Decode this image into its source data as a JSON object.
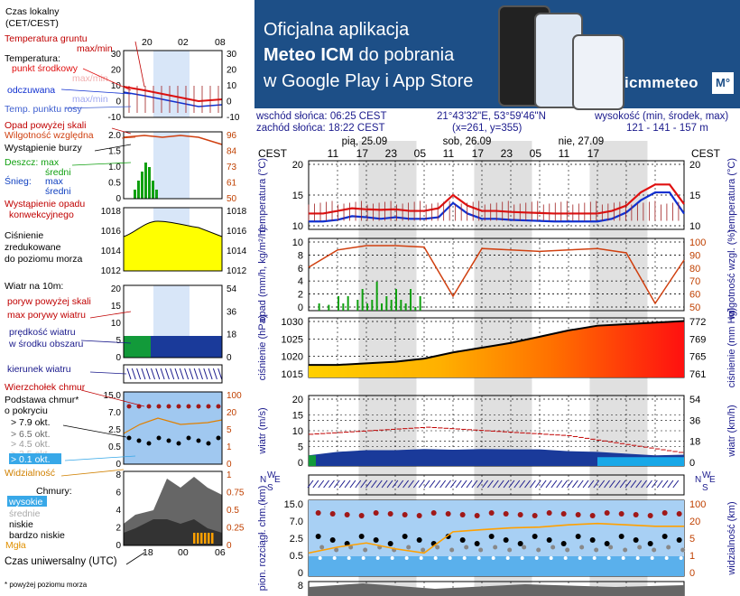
{
  "banner": {
    "line1": "Oficjalna aplikacja",
    "line2_bold": "Meteo ICM",
    "line2_rest": " do pobrania",
    "line3": "w Google Play i App Store",
    "brand": "icmmeteo",
    "logo": "M°",
    "colors": {
      "background": "#1d4f87",
      "text": "#ffffff"
    }
  },
  "info": {
    "sunrise": "wschód słońca: 06:25 CEST",
    "sunset": "zachód słońca: 18:22 CEST",
    "coords": "21°43'32\"E, 53°59'46\"N",
    "grid": "(x=261, y=355)",
    "altitude_label": "wysokość (min, środek, max)",
    "altitude_values": "121 - 141 - 157 m"
  },
  "legend": {
    "time_local": "Czas lokalny",
    "time_local2": "(CET/CEST)",
    "time_ticks": [
      "20",
      "02",
      "08"
    ],
    "ground_temp": "Temperatura gruntu",
    "ground_temp2": "max/min",
    "temperature": "Temperatura:",
    "mid_point": "punkt środkowy",
    "faded_maxmin": "max/min",
    "perceived": "odczuwana",
    "dew_point": "Temp. punktu rosy",
    "precip_over": "Opad powyżej skali",
    "humidity": "Wilgotność względna",
    "storm": "Wystąpienie burzy",
    "rain": "Deszcz: max",
    "rain_mid": "średni",
    "snow": "Śnieg:",
    "snow_max": "max",
    "snow_mid": "średni",
    "conv": "Wystąpienie opadu",
    "conv2": "konwekcyjnego",
    "pressure": "Ciśnienie",
    "pressure2": "zredukowane",
    "pressure3": "do poziomu morza",
    "wind_10m": "Wiatr na 10m:",
    "gust_over": "poryw powyżej skali",
    "gust_max": "max porywy wiatru",
    "wind_mean": "prędkość wiatru",
    "wind_mean2": "w środku obszaru",
    "wind_dir": "kierunek wiatru",
    "cloud_top": "Wierzchołek chmur",
    "cloud_base": "Podstawa chmur*",
    "cloud_base2": "o pokryciu",
    "okt": [
      "> 7.9 okt.",
      "> 6.5 okt.",
      "> 4.5 okt.",
      "> 2.5 okt.",
      "> 0.1 okt."
    ],
    "visibility": "Widzialność",
    "clouds": "Chmury:",
    "cl_high": "wysokie",
    "cl_mid": "średnie",
    "cl_low": "niskie",
    "cl_vlow": "bardzo niskie",
    "fog": "Mgła",
    "utc": "Czas uniwersalny (UTC)",
    "utc_ticks": [
      "18",
      "00",
      "06"
    ],
    "footnote": "* powyżej poziomu morza",
    "ticks_temp_l": [
      "30",
      "20",
      "10",
      "0",
      "-10"
    ],
    "ticks_temp_r": [
      "30",
      "20",
      "10",
      "0",
      "-10"
    ],
    "ticks_pr_l": [
      "2.0",
      "1.5",
      "1.0",
      "0.5",
      "0"
    ],
    "ticks_pr_r": [
      "96",
      "84",
      "73",
      "61",
      "50"
    ],
    "ticks_p_l": [
      "1018",
      "1016",
      "1014",
      "1012"
    ],
    "ticks_p_r": [
      "1018",
      "1016",
      "1014",
      "1012"
    ],
    "ticks_w_l": [
      "20",
      "15",
      "10",
      "5",
      "0"
    ],
    "ticks_w_r": [
      "54",
      "36",
      "18",
      "0"
    ],
    "ticks_c_l": [
      "15.0",
      "7.0",
      "2.5",
      "0.5",
      "0"
    ],
    "ticks_c_r": [
      "100",
      "20",
      "5",
      "1",
      "0"
    ],
    "ticks_cl_l": [
      "8",
      "6",
      "4",
      "2",
      "0"
    ],
    "ticks_cl_r": [
      "1",
      "0.75",
      "0.5",
      "0.25",
      "0"
    ]
  },
  "main": {
    "tz": "CEST",
    "days": [
      "pią, 25.09",
      "sob, 26.09",
      "nie, 27.09"
    ],
    "hours": [
      "11",
      "17",
      "23",
      "05",
      "11",
      "17",
      "23",
      "05",
      "11",
      "17"
    ],
    "labels": {
      "temp_l": "temperatura (°C)",
      "temp_r": "temperatura (°C)",
      "precip_l": "opad (mm/h, kg/m²/h)",
      "precip_r": "wilgotność wzgl. (%)",
      "pres_l": "ciśnienie (hPa)",
      "pres_r": "ciśnienie (mm Hg)",
      "wind_l": "wiatr (m/s)",
      "wind_r": "wiatr (km/h)",
      "vis_l": "pion. rozciągł. chm.(km)",
      "vis_r": "widzialność (km)"
    },
    "ticks": {
      "temp": [
        "20",
        "15",
        "10"
      ],
      "precip_l": [
        "10",
        "8",
        "6",
        "4",
        "2",
        "0"
      ],
      "precip_r": [
        "100",
        "90",
        "80",
        "70",
        "60",
        "50"
      ],
      "pres_l": [
        "1030",
        "1025",
        "1020",
        "1015"
      ],
      "pres_r": [
        "772",
        "769",
        "765",
        "761"
      ],
      "wind_l": [
        "20",
        "15",
        "10",
        "5",
        "0"
      ],
      "wind_r": [
        "54",
        "36",
        "18",
        "0"
      ],
      "vis_l": [
        "15.0",
        "7.0",
        "2.5",
        "0.5",
        "0"
      ],
      "vis_r": [
        "100",
        "20",
        "5",
        "1",
        "0"
      ],
      "bottom": "8"
    },
    "compass": [
      "N",
      "W",
      "E",
      "S"
    ]
  },
  "colors": {
    "axis_text": "#1a1a8c",
    "temp_red": "#e01010",
    "perceived_blue": "#1030d0",
    "humidity": "#d04010",
    "rain_green": "#10a010",
    "snow_blue": "#1040c0",
    "pressure_yellow": "#ffff00",
    "night_shade": "#e0e0e0",
    "fog": "#ffa000"
  },
  "chart_data": [
    {
      "type": "line",
      "title": "temperatura (°C)",
      "x_unit": "hours from 25.09 08:00 CEST",
      "ylim": [
        8,
        21
      ],
      "series": [
        {
          "name": "punkt środkowy",
          "x": [
            0,
            3,
            6,
            9,
            12,
            15,
            18,
            21,
            24,
            27,
            30,
            33,
            36,
            39,
            42,
            45,
            48,
            51,
            54,
            57,
            60,
            63,
            66,
            69,
            72,
            75,
            78
          ],
          "values": [
            11,
            11,
            11.5,
            12,
            11.8,
            11.7,
            11.8,
            11.5,
            11.5,
            12,
            14.5,
            12.5,
            11.5,
            11.5,
            11.3,
            11.2,
            11.1,
            11,
            11,
            11,
            11,
            11.5,
            12.5,
            15,
            16.5,
            16.5,
            12.8
          ]
        },
        {
          "name": "odczuwana",
          "x": [
            0,
            3,
            6,
            9,
            12,
            15,
            18,
            21,
            24,
            27,
            30,
            33,
            36,
            39,
            42,
            45,
            48,
            51,
            54,
            57,
            60,
            63,
            66,
            69,
            72,
            75,
            78
          ],
          "values": [
            9.5,
            9.5,
            9.8,
            10.5,
            10.3,
            10,
            10.3,
            10,
            10,
            10.3,
            13,
            11,
            10,
            10,
            9.8,
            9.7,
            9.6,
            9.5,
            9.5,
            9.5,
            9.5,
            10,
            11.2,
            13.5,
            15,
            15,
            11
          ]
        }
      ]
    },
    {
      "type": "bar",
      "title": "opad (mm/h, kg/m²/h)",
      "ylim": [
        0,
        10
      ],
      "series": [
        {
          "name": "deszcz",
          "x": [
            2,
            4,
            6,
            7,
            8,
            10,
            11,
            12,
            13,
            14,
            15,
            16,
            17,
            18,
            19,
            20,
            21,
            22,
            23
          ],
          "values": [
            1,
            0.8,
            2,
            1,
            2,
            1.5,
            3,
            1,
            1.5,
            4,
            1,
            2,
            1.5,
            3,
            1.5,
            1,
            3,
            0.5,
            2
          ]
        },
        {
          "name": "wilgotność względna (%)",
          "x": [
            0,
            6,
            12,
            18,
            24,
            30,
            36,
            42,
            48,
            54,
            60,
            66,
            72,
            78
          ],
          "values": [
            80,
            92,
            95,
            95,
            94,
            60,
            93,
            92,
            91,
            92,
            93,
            90,
            55,
            85
          ]
        }
      ]
    },
    {
      "type": "area",
      "title": "ciśnienie (hPa)",
      "ylim": [
        1012,
        1031
      ],
      "x": [
        0,
        6,
        12,
        18,
        24,
        30,
        36,
        42,
        48,
        54,
        60,
        66,
        72,
        78
      ],
      "values": [
        1016,
        1016,
        1016.5,
        1017,
        1018,
        1020,
        1021.5,
        1023,
        1025,
        1027,
        1028.5,
        1029,
        1029.5,
        1030
      ]
    },
    {
      "type": "line",
      "title": "wiatr (m/s)",
      "ylim": [
        0,
        20
      ],
      "series": [
        {
          "name": "prędkość wiatru",
          "x": [
            0,
            6,
            12,
            18,
            24,
            30,
            36,
            42,
            48,
            54,
            60,
            66,
            72,
            78
          ],
          "values": [
            3,
            4,
            4.5,
            4.5,
            4.8,
            4.6,
            4.8,
            4.7,
            4.7,
            4.2,
            4,
            3.5,
            3,
            3.2
          ]
        },
        {
          "name": "max porywy wiatru",
          "x": [
            0,
            6,
            12,
            18,
            24,
            30,
            36,
            42,
            48,
            54,
            60,
            66,
            72,
            78
          ],
          "values": [
            11,
            12.5,
            12.3,
            11.3,
            10.8,
            11.3,
            11.2,
            11.4,
            11.1,
            10.2,
            9.5,
            8.5,
            6.5,
            7.5
          ]
        }
      ]
    },
    {
      "type": "line",
      "title": "widzialność (km)",
      "ylim": [
        0,
        100
      ],
      "x": [
        0,
        6,
        12,
        18,
        24,
        30,
        36,
        42,
        48,
        54,
        60,
        66,
        72,
        78
      ],
      "values": [
        2,
        3.5,
        5,
        3,
        2,
        12,
        14,
        16,
        17,
        20,
        22,
        20,
        18,
        18
      ]
    }
  ]
}
